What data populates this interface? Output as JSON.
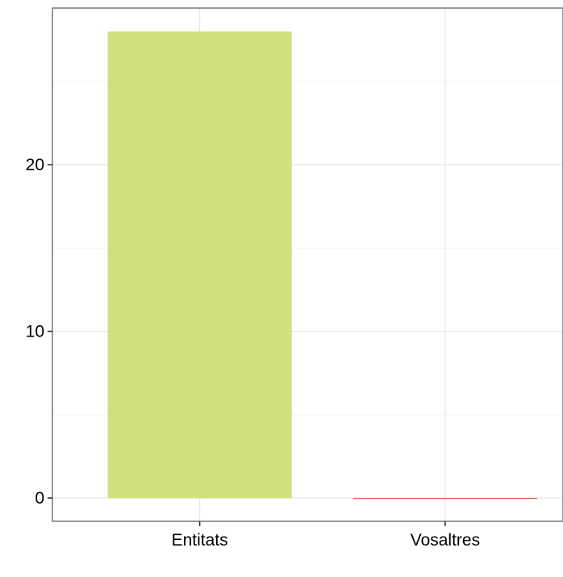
{
  "chart_data": {
    "type": "bar",
    "title": "",
    "xlabel": "",
    "ylabel": "",
    "categories": [
      "Entitats",
      "Vosaltres"
    ],
    "values": [
      28,
      0
    ],
    "colors": [
      "#d1e07d",
      "#e0502a"
    ],
    "ylim": [
      -1.4,
      29.4
    ],
    "yticks": [
      0,
      10,
      20
    ],
    "ytick_labels": [
      "0",
      "10",
      "20"
    ],
    "grid": true,
    "legend": "none",
    "theme": {
      "panel_border": "#7f7f7f",
      "grid_major": "#e6e6e6",
      "grid_minor": "#f2f2f2",
      "axis_text": "#000000"
    }
  }
}
